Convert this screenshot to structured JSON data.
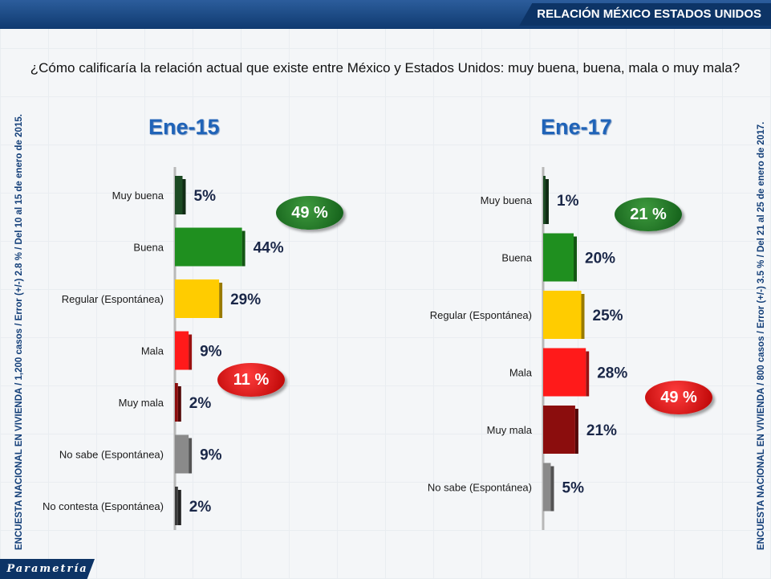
{
  "header": {
    "title": "RELACIÓN MÉXICO ESTADOS UNIDOS"
  },
  "question": "¿Cómo calificaría la relación actual que existe entre México y Estados Unidos: muy buena, buena, mala o muy mala?",
  "side_left": "ENCUESTA NACIONAL EN VIVIENDA / 1,200 casos / Error (+/-) 2.8 % / Del 10 al 15 de enero de 2015.",
  "side_right": "ENCUESTA NACIONAL EN VIVIENDA / 800 casos / Error (+/-) 3.5 % / Del 21 al 25 de enero de 2017.",
  "brand": "Parametría",
  "colors": {
    "muy_buena": "#1c4a23",
    "buena": "#1f8f1f",
    "regular": "#ffcc00",
    "mala": "#ff1a1a",
    "muy_mala": "#8b0d0d",
    "no_sabe": "#8a8a8a",
    "no_contesta": "#3a3a3a"
  },
  "chart_data": [
    {
      "type": "bar",
      "orientation": "horizontal",
      "title": "Ene-15",
      "categories": [
        "Muy buena",
        "Buena",
        "Regular (Espontánea)",
        "Mala",
        "Muy mala",
        "No sabe (Espontánea)",
        "No contesta (Espontánea)"
      ],
      "values": [
        5,
        44,
        29,
        9,
        2,
        9,
        2
      ],
      "labels": [
        "5%",
        "44%",
        "29%",
        "9%",
        "2%",
        "9%",
        "2%"
      ],
      "colors": [
        "#1c4a23",
        "#1f8f1f",
        "#ffcc00",
        "#ff1a1a",
        "#8b0d0d",
        "#8a8a8a",
        "#3a3a3a"
      ],
      "callouts": [
        {
          "text": "49 %",
          "color": "green"
        },
        {
          "text": "11 %",
          "color": "red"
        }
      ]
    },
    {
      "type": "bar",
      "orientation": "horizontal",
      "title": "Ene-17",
      "categories": [
        "Muy buena",
        "Buena",
        "Regular (Espontánea)",
        "Mala",
        "Muy mala",
        "No sabe (Espontánea)"
      ],
      "values": [
        1,
        20,
        25,
        28,
        21,
        5
      ],
      "labels": [
        "1%",
        "20%",
        "25%",
        "28%",
        "21%",
        "5%"
      ],
      "colors": [
        "#1c4a23",
        "#1f8f1f",
        "#ffcc00",
        "#ff1a1a",
        "#8b0d0d",
        "#8a8a8a"
      ],
      "callouts": [
        {
          "text": "21 %",
          "color": "green"
        },
        {
          "text": "49 %",
          "color": "red"
        }
      ]
    }
  ]
}
